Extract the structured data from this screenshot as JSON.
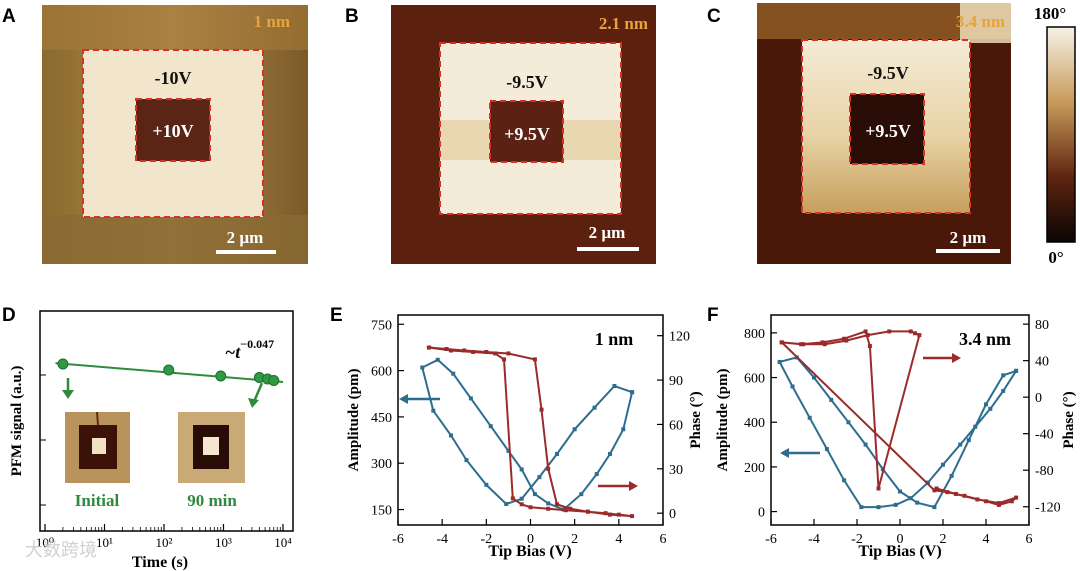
{
  "panels": {
    "A": {
      "letter": "A",
      "thickness": "1 nm",
      "outer_voltage": "-10V",
      "inner_voltage": "+10V",
      "scale": "2 µm"
    },
    "B": {
      "letter": "B",
      "thickness": "2.1 nm",
      "outer_voltage": "-9.5V",
      "inner_voltage": "+9.5V",
      "scale": "2 µm"
    },
    "C": {
      "letter": "C",
      "thickness": "3.4 nm",
      "outer_voltage": "-9.5V",
      "inner_voltage": "+9.5V",
      "scale": "2 µm"
    },
    "D": {
      "letter": "D"
    },
    "E": {
      "letter": "E"
    },
    "F": {
      "letter": "F"
    }
  },
  "colorbar": {
    "top_label": "180°",
    "bottom_label": "0°"
  },
  "colors": {
    "accent_orange": "#e8a33a",
    "dashed_red": "#d9302a",
    "green": "#2e8b3e",
    "blue": "#2d6d8f",
    "darkred": "#9b2b2b"
  },
  "chart_data": [
    {
      "panel": "D",
      "type": "scatter",
      "title": "",
      "xlabel": "Time (s)",
      "ylabel": "PFM signal (a.u.)",
      "xscale": "log",
      "xlim": [
        1,
        10000
      ],
      "x_ticks": [
        "10⁰",
        "10¹",
        "10²",
        "10³",
        "10⁴"
      ],
      "points": [
        {
          "x": 2,
          "y": 1.0
        },
        {
          "x": 120,
          "y": 0.98
        },
        {
          "x": 900,
          "y": 0.96
        },
        {
          "x": 4000,
          "y": 0.955
        },
        {
          "x": 5500,
          "y": 0.95
        },
        {
          "x": 7000,
          "y": 0.945
        }
      ],
      "fit_label": "~t",
      "fit_exponent": "−0.047",
      "insets": [
        "Initial",
        "90 min"
      ]
    },
    {
      "panel": "E",
      "type": "line",
      "annotation": "1 nm",
      "xlabel": "Tip Bias (V)",
      "ylabel": "Amplitude (pm)",
      "y2label": "Phase (°)",
      "xlim": [
        -6,
        6
      ],
      "ylim": [
        100,
        780
      ],
      "y2lim": [
        -8,
        134
      ],
      "x_ticks": [
        "-6",
        "-4",
        "-2",
        "0",
        "2",
        "4",
        "6"
      ],
      "y_ticks": [
        "150",
        "300",
        "450",
        "600",
        "750"
      ],
      "y2_ticks": [
        "0",
        "30",
        "60",
        "90",
        "120"
      ],
      "series": [
        {
          "name": "Amplitude",
          "axis": "left",
          "x": [
            4.6,
            3.8,
            2.9,
            2.0,
            1.2,
            0.4,
            -0.4,
            -1.1,
            -2.0,
            -2.9,
            -3.6,
            -4.4,
            -4.9,
            -4.2,
            -3.5,
            -2.7,
            -1.8,
            -1.0,
            -0.4,
            0.2,
            0.8,
            1.5,
            2.3,
            3.0,
            3.6,
            4.2,
            4.6
          ],
          "y": [
            530,
            550,
            480,
            410,
            330,
            255,
            185,
            168,
            230,
            310,
            390,
            470,
            610,
            635,
            590,
            510,
            420,
            340,
            280,
            200,
            170,
            150,
            200,
            265,
            330,
            410,
            530
          ]
        },
        {
          "name": "Phase",
          "axis": "right",
          "x": [
            -4.6,
            -3.8,
            -3.0,
            -2.0,
            -1.0,
            0.2,
            0.5,
            0.8,
            1.2,
            1.8,
            2.6,
            3.4,
            4.0,
            4.6,
            3.6,
            2.6,
            1.6,
            0.8,
            0.0,
            -0.4,
            -0.8,
            -1.2,
            -1.6,
            -2.6,
            -3.6,
            -4.6
          ],
          "y": [
            112,
            111,
            110,
            109,
            108,
            104,
            70,
            30,
            6,
            3,
            1,
            0,
            -1,
            -2,
            -1,
            1,
            2,
            3,
            4,
            6,
            10,
            104,
            108,
            109,
            110,
            112
          ]
        }
      ],
      "arrows": [
        "Amplitude ←",
        "Phase →"
      ]
    },
    {
      "panel": "F",
      "type": "line",
      "annotation": "3.4 nm",
      "xlabel": "Tip Bias (V)",
      "ylabel": "Amplitude (pm)",
      "y2label": "Phase (°)",
      "xlim": [
        -6,
        6
      ],
      "ylim": [
        -60,
        880
      ],
      "y2lim": [
        -140,
        90
      ],
      "x_ticks": [
        "-6",
        "-4",
        "-2",
        "0",
        "2",
        "4",
        "6"
      ],
      "y_ticks": [
        "0",
        "200",
        "400",
        "600",
        "800"
      ],
      "y2_ticks": [
        "-120",
        "-80",
        "-40",
        "0",
        "40",
        "80"
      ],
      "series": [
        {
          "name": "Amplitude",
          "axis": "left",
          "x": [
            5.4,
            4.8,
            4.2,
            3.5,
            2.8,
            2.0,
            1.3,
            0.5,
            -0.2,
            -1.0,
            -1.8,
            -2.6,
            -3.4,
            -4.2,
            -5.0,
            -5.6,
            -4.8,
            -4.0,
            -3.2,
            -2.4,
            -1.6,
            -0.8,
            0.0,
            0.8,
            1.6,
            2.4,
            3.2,
            4.0,
            4.8,
            5.4
          ],
          "y": [
            630,
            540,
            460,
            380,
            300,
            210,
            130,
            60,
            30,
            20,
            20,
            140,
            280,
            420,
            560,
            670,
            690,
            600,
            500,
            400,
            300,
            190,
            90,
            40,
            20,
            160,
            320,
            480,
            610,
            630
          ],
          "note": "approximate"
        },
        {
          "name": "Phase",
          "axis": "right",
          "x": [
            -5.5,
            -4.5,
            -3.5,
            -2.5,
            -1.5,
            -0.5,
            0.5,
            0.7,
            0.9,
            -1.0,
            -1.4,
            -1.6,
            -2.6,
            -3.6,
            -4.6,
            -5.5,
            1.6,
            2.2,
            3.0,
            4.0,
            4.6,
            5.2,
            5.4,
            4.6,
            3.6,
            2.6,
            1.7
          ],
          "y": [
            60,
            58,
            58,
            62,
            68,
            72,
            72,
            70,
            68,
            -100,
            56,
            72,
            64,
            60,
            58,
            60,
            -102,
            -104,
            -108,
            -114,
            -118,
            -114,
            -110,
            -116,
            -112,
            -106,
            -100
          ],
          "note": "approximate"
        }
      ],
      "arrows": [
        "Amplitude ←",
        "Phase →"
      ]
    }
  ],
  "watermark": "大数跨境"
}
